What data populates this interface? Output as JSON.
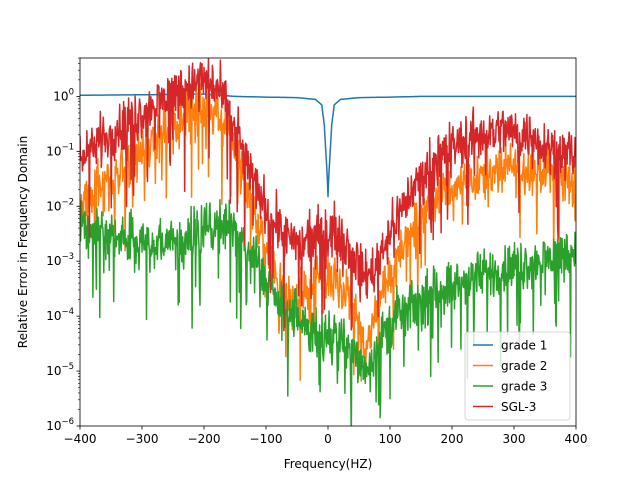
{
  "chart_data": {
    "type": "line",
    "title": "",
    "xlabel": "Frequency(HZ)",
    "ylabel": "Relative Error in Frequency Domain",
    "xlim": [
      -400,
      400
    ],
    "ylim": [
      1e-06,
      5
    ],
    "yscale": "log",
    "grid": false,
    "legend_position": "lower-right",
    "x_ticks": [
      {
        "value": -400,
        "label": "−400"
      },
      {
        "value": -300,
        "label": "−300"
      },
      {
        "value": -200,
        "label": "−200"
      },
      {
        "value": -100,
        "label": "−100"
      },
      {
        "value": 0,
        "label": "0"
      },
      {
        "value": 100,
        "label": "100"
      },
      {
        "value": 200,
        "label": "200"
      },
      {
        "value": 300,
        "label": "300"
      },
      {
        "value": 400,
        "label": "400"
      }
    ],
    "y_ticks": [
      {
        "value": 1,
        "base": "10",
        "exp": "0"
      },
      {
        "value": 0.1,
        "base": "10",
        "exp": "−1"
      },
      {
        "value": 0.01,
        "base": "10",
        "exp": "−2"
      },
      {
        "value": 0.001,
        "base": "10",
        "exp": "−3"
      },
      {
        "value": 0.0001,
        "base": "10",
        "exp": "−4"
      },
      {
        "value": 1e-05,
        "base": "10",
        "exp": "−5"
      },
      {
        "value": 1e-06,
        "base": "10",
        "exp": "−6"
      }
    ],
    "series": [
      {
        "name": "grade 1",
        "color": "#1f77b4",
        "style": "smooth",
        "x": [
          -400,
          -300,
          -200,
          -150,
          -100,
          -50,
          -20,
          -10,
          -6,
          -3,
          -1,
          0,
          1,
          3,
          6,
          10,
          20,
          50,
          100,
          150,
          200,
          300,
          400
        ],
        "y": [
          1.05,
          1.07,
          1.1,
          1.0,
          0.97,
          0.95,
          0.88,
          0.7,
          0.3,
          0.08,
          0.03,
          0.015,
          0.03,
          0.08,
          0.3,
          0.7,
          0.88,
          0.95,
          0.97,
          1.0,
          1.0,
          1.0,
          1.0
        ]
      },
      {
        "name": "grade 2",
        "color": "#ff7f0e",
        "style": "noisy",
        "x": [
          -400,
          -370,
          -340,
          -300,
          -260,
          -230,
          -200,
          -180,
          -160,
          -140,
          -120,
          -100,
          -80,
          -60,
          -45,
          -30,
          -15,
          0,
          15,
          30,
          45,
          60,
          75,
          90,
          110,
          130,
          150,
          180,
          220,
          260,
          300,
          340,
          370,
          400
        ],
        "y": [
          0.01,
          0.02,
          0.04,
          0.1,
          0.25,
          0.5,
          0.7,
          0.6,
          0.25,
          0.05,
          0.008,
          0.002,
          0.0005,
          0.00015,
          0.0002,
          0.0004,
          0.0005,
          0.0005,
          0.0004,
          0.0002,
          0.0001,
          3e-05,
          8e-05,
          0.0003,
          0.001,
          0.003,
          0.007,
          0.015,
          0.03,
          0.04,
          0.05,
          0.05,
          0.04,
          0.02
        ]
      },
      {
        "name": "grade 3",
        "color": "#2ca02c",
        "style": "noisy",
        "x": [
          -400,
          -360,
          -320,
          -280,
          -240,
          -200,
          -170,
          -150,
          -130,
          -110,
          -90,
          -70,
          -55,
          -40,
          -20,
          0,
          20,
          40,
          55,
          60,
          75,
          90,
          110,
          140,
          180,
          220,
          260,
          300,
          340,
          370,
          400
        ],
        "y": [
          0.004,
          0.003,
          0.0025,
          0.002,
          0.0025,
          0.004,
          0.005,
          0.003,
          0.0015,
          0.0006,
          0.0003,
          0.00015,
          0.0001,
          6e-05,
          5e-05,
          4e-05,
          4e-05,
          2e-05,
          1.5e-05,
          1e-05,
          2.5e-05,
          5e-05,
          0.0001,
          0.00015,
          0.0003,
          0.0004,
          0.0006,
          0.0008,
          0.001,
          0.0013,
          0.0015
        ]
      },
      {
        "name": "SGL-3",
        "color": "#d62728",
        "style": "noisy",
        "x": [
          -400,
          -370,
          -340,
          -300,
          -260,
          -230,
          -200,
          -180,
          -160,
          -140,
          -120,
          -100,
          -80,
          -60,
          -40,
          -20,
          0,
          20,
          40,
          55,
          70,
          90,
          110,
          130,
          160,
          200,
          240,
          280,
          320,
          360,
          400
        ],
        "y": [
          0.08,
          0.15,
          0.25,
          0.5,
          1.0,
          1.5,
          2.0,
          1.5,
          0.5,
          0.12,
          0.03,
          0.01,
          0.005,
          0.002,
          0.002,
          0.003,
          0.004,
          0.003,
          0.0015,
          0.0006,
          0.0006,
          0.002,
          0.006,
          0.015,
          0.05,
          0.12,
          0.2,
          0.25,
          0.2,
          0.12,
          0.08
        ]
      }
    ]
  }
}
